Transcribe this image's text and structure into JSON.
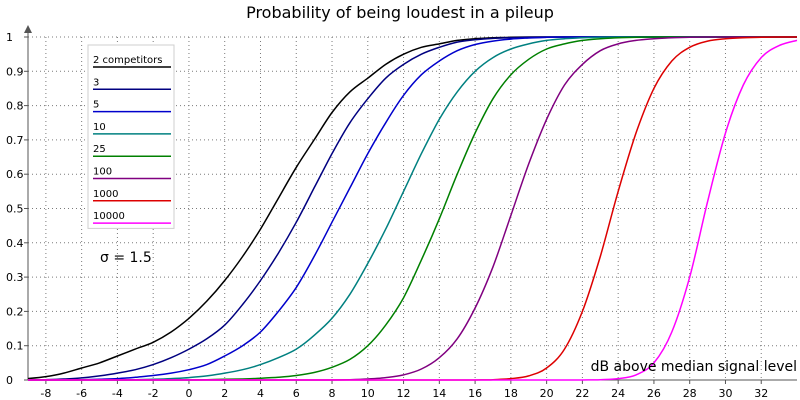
{
  "chart_data": {
    "type": "line",
    "title": "Probability of being loudest in a pileup",
    "xlabel": "dB above median signal level",
    "ylabel": "",
    "xlim": [
      -9,
      34
    ],
    "ylim": [
      0,
      1
    ],
    "x_ticks": [
      -8,
      -6,
      -4,
      -2,
      0,
      2,
      4,
      6,
      8,
      10,
      12,
      14,
      16,
      18,
      20,
      22,
      24,
      26,
      28,
      30,
      32
    ],
    "y_ticks": [
      0,
      0.1,
      0.2,
      0.3,
      0.4,
      0.5,
      0.6,
      0.7,
      0.8,
      0.9,
      1
    ],
    "y_tick_labels": [
      "0",
      "0.1",
      "0.2",
      "0.3",
      "0.4",
      "0.5",
      "0.6",
      "0.7",
      "0.8",
      "0.9",
      "1"
    ],
    "grid": true,
    "legend_position": "top-left",
    "annotation": "σ = 1.5",
    "x": [
      -9,
      -8,
      -7,
      -6,
      -5,
      -4,
      -3,
      -2,
      -1,
      0,
      1,
      2,
      3,
      4,
      5,
      6,
      7,
      8,
      9,
      10,
      11,
      12,
      13,
      14,
      15,
      16,
      17,
      18,
      19,
      20,
      21,
      22,
      23,
      24,
      25,
      26,
      27,
      28,
      29,
      30,
      31,
      32,
      33,
      34
    ],
    "series": [
      {
        "name": "2 competitors",
        "color": "#000000",
        "values": [
          0.004,
          0.01,
          0.02,
          0.035,
          0.05,
          0.07,
          0.09,
          0.11,
          0.14,
          0.18,
          0.23,
          0.29,
          0.36,
          0.44,
          0.53,
          0.62,
          0.7,
          0.78,
          0.84,
          0.88,
          0.92,
          0.95,
          0.97,
          0.98,
          0.99,
          0.995,
          0.998,
          0.999,
          1,
          1,
          1,
          1,
          1,
          1,
          1,
          1,
          1,
          1,
          1,
          1,
          1,
          1,
          1,
          1
        ]
      },
      {
        "name": "3",
        "color": "#000080",
        "values": [
          0.0005,
          0.001,
          0.003,
          0.006,
          0.012,
          0.02,
          0.03,
          0.045,
          0.065,
          0.09,
          0.12,
          0.16,
          0.22,
          0.29,
          0.37,
          0.46,
          0.56,
          0.66,
          0.75,
          0.82,
          0.88,
          0.92,
          0.95,
          0.97,
          0.985,
          0.992,
          0.996,
          0.998,
          0.999,
          1,
          1,
          1,
          1,
          1,
          1,
          1,
          1,
          1,
          1,
          1,
          1,
          1,
          1,
          1
        ]
      },
      {
        "name": "5",
        "color": "#0000cc",
        "values": [
          0,
          0,
          0,
          0.001,
          0.002,
          0.004,
          0.008,
          0.013,
          0.02,
          0.03,
          0.045,
          0.07,
          0.1,
          0.14,
          0.2,
          0.27,
          0.36,
          0.46,
          0.56,
          0.66,
          0.75,
          0.83,
          0.89,
          0.93,
          0.96,
          0.978,
          0.988,
          0.994,
          0.997,
          0.999,
          1,
          1,
          1,
          1,
          1,
          1,
          1,
          1,
          1,
          1,
          1,
          1,
          1,
          1
        ]
      },
      {
        "name": "10",
        "color": "#008080",
        "values": [
          0,
          0,
          0,
          0,
          0,
          0,
          0.001,
          0.002,
          0.004,
          0.007,
          0.012,
          0.02,
          0.03,
          0.045,
          0.065,
          0.09,
          0.13,
          0.18,
          0.25,
          0.34,
          0.44,
          0.55,
          0.66,
          0.76,
          0.84,
          0.9,
          0.94,
          0.965,
          0.98,
          0.99,
          0.995,
          0.998,
          0.999,
          1,
          1,
          1,
          1,
          1,
          1,
          1,
          1,
          1,
          1,
          1
        ]
      },
      {
        "name": "25",
        "color": "#008000",
        "values": [
          0,
          0,
          0,
          0,
          0,
          0,
          0,
          0,
          0,
          0,
          0.001,
          0.002,
          0.003,
          0.005,
          0.008,
          0.013,
          0.022,
          0.037,
          0.06,
          0.1,
          0.16,
          0.24,
          0.35,
          0.47,
          0.6,
          0.72,
          0.82,
          0.89,
          0.935,
          0.965,
          0.98,
          0.99,
          0.995,
          0.998,
          0.999,
          1,
          1,
          1,
          1,
          1,
          1,
          1,
          1,
          1
        ]
      },
      {
        "name": "100",
        "color": "#800080",
        "values": [
          0,
          0,
          0,
          0,
          0,
          0,
          0,
          0,
          0,
          0,
          0,
          0,
          0,
          0,
          0,
          0,
          0,
          0,
          0.001,
          0.003,
          0.007,
          0.015,
          0.032,
          0.065,
          0.12,
          0.21,
          0.33,
          0.48,
          0.63,
          0.76,
          0.86,
          0.92,
          0.96,
          0.98,
          0.99,
          0.995,
          0.998,
          0.999,
          1,
          1,
          1,
          1,
          1,
          1
        ]
      },
      {
        "name": "1000",
        "color": "#dd0000",
        "values": [
          0,
          0,
          0,
          0,
          0,
          0,
          0,
          0,
          0,
          0,
          0,
          0,
          0,
          0,
          0,
          0,
          0,
          0,
          0,
          0,
          0,
          0,
          0,
          0,
          0,
          0,
          0.001,
          0.004,
          0.012,
          0.035,
          0.09,
          0.2,
          0.36,
          0.55,
          0.72,
          0.85,
          0.93,
          0.97,
          0.988,
          0.995,
          0.998,
          0.999,
          1,
          1
        ]
      },
      {
        "name": "10000",
        "color": "#ff00ff",
        "values": [
          0,
          0,
          0,
          0,
          0,
          0,
          0,
          0,
          0,
          0,
          0,
          0,
          0,
          0,
          0,
          0,
          0,
          0,
          0,
          0,
          0,
          0,
          0,
          0,
          0,
          0,
          0,
          0,
          0,
          0,
          0,
          0,
          0.001,
          0.004,
          0.015,
          0.05,
          0.14,
          0.3,
          0.52,
          0.72,
          0.86,
          0.94,
          0.975,
          0.99
        ]
      }
    ]
  }
}
